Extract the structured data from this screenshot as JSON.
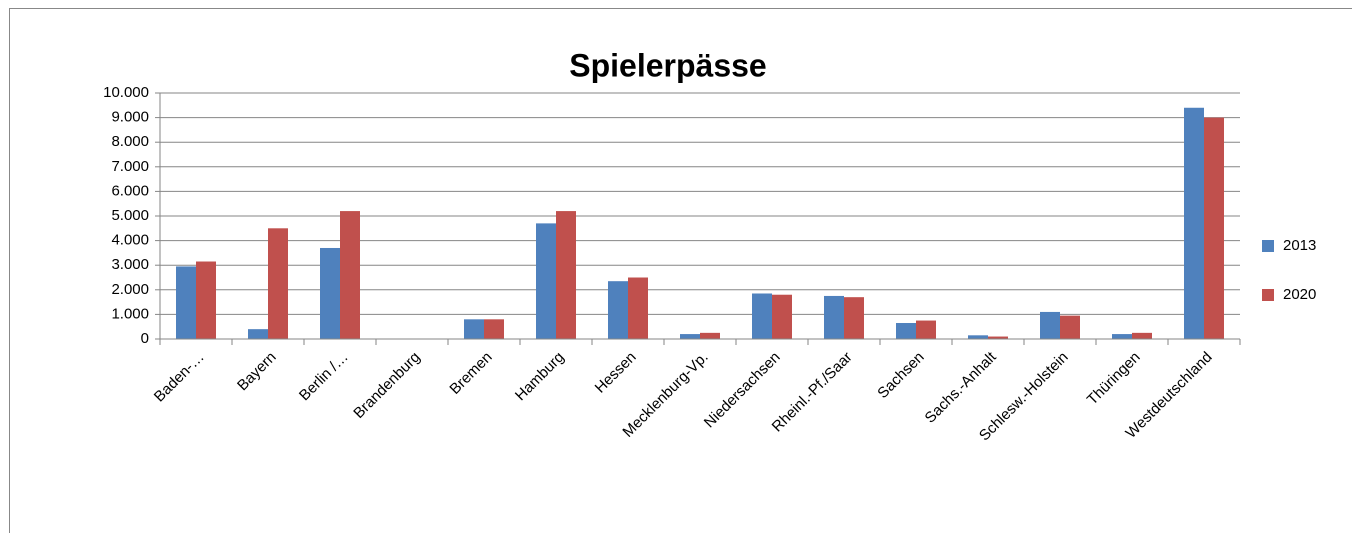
{
  "chart_data": {
    "type": "bar",
    "title": "Spielerpässe",
    "categories": [
      "Baden-…",
      "Bayern",
      "Berlin /…",
      "Brandenburg",
      "Bremen",
      "Hamburg",
      "Hessen",
      "Mecklenburg-Vp.",
      "Niedersachsen",
      "Rheinl.-Pf./Saar",
      "Sachsen",
      "Sachs.-Anhalt",
      "Schlesw.-Holstein",
      "Thüringen",
      "Westdeutschland"
    ],
    "series": [
      {
        "name": "2013",
        "color": "#4f81bd",
        "values": [
          2950,
          400,
          3700,
          0,
          800,
          4700,
          2350,
          200,
          1850,
          1750,
          650,
          150,
          1100,
          200,
          9400
        ]
      },
      {
        "name": "2020",
        "color": "#c0504d",
        "values": [
          3150,
          4500,
          5200,
          0,
          800,
          5200,
          2500,
          250,
          1800,
          1700,
          750,
          100,
          950,
          250,
          9000
        ]
      }
    ],
    "ylim": [
      0,
      10000
    ],
    "yticks": [
      0,
      {
        "value": 1000,
        "label": "1.000"
      },
      {
        "value": 2000,
        "label": "2.000"
      },
      {
        "value": 3000,
        "label": "3.000"
      },
      {
        "value": 4000,
        "label": "4.000"
      },
      {
        "value": 5000,
        "label": "5.000"
      },
      {
        "value": 6000,
        "label": "6.000"
      },
      {
        "value": 7000,
        "label": "7.000"
      },
      {
        "value": 8000,
        "label": "8.000"
      },
      {
        "value": 9000,
        "label": "9.000"
      },
      {
        "value": 10000,
        "label": "10.000"
      }
    ],
    "grid": true,
    "legend": "right"
  }
}
